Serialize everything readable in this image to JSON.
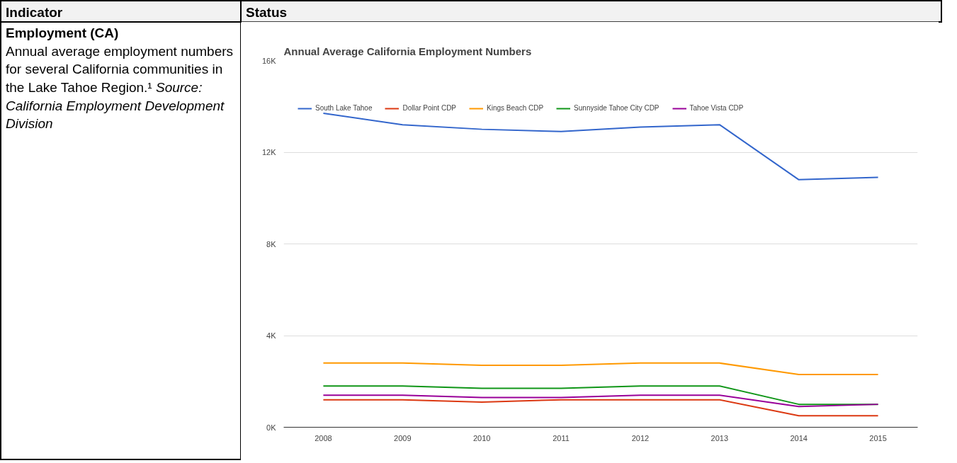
{
  "chart_data": {
    "type": "line",
    "title": "Annual Average California Employment Numbers",
    "annotations": [
      "Indicator",
      "Status",
      "Employment (CA)",
      "Annual average employment numbers for several California communities in the Lake Tahoe Region.¹",
      "Source: California Employment Development Division"
    ],
    "categories": [
      "2008",
      "2009",
      "2010",
      "2011",
      "2012",
      "2013",
      "2014",
      "2015"
    ],
    "series": [
      {
        "name": "South Lake Tahoe",
        "color": "#3366cc",
        "values": [
          13700,
          13200,
          13000,
          12900,
          13100,
          13200,
          10800,
          10900
        ]
      },
      {
        "name": "Dollar Point CDP",
        "color": "#dc3912",
        "values": [
          1200,
          1200,
          1100,
          1200,
          1200,
          1200,
          500,
          500
        ]
      },
      {
        "name": "Kings Beach CDP",
        "color": "#ff9900",
        "values": [
          2800,
          2800,
          2700,
          2700,
          2800,
          2800,
          2300,
          2300
        ]
      },
      {
        "name": "Sunnyside Tahoe City CDP",
        "color": "#109618",
        "values": [
          1800,
          1800,
          1700,
          1700,
          1800,
          1800,
          1000,
          1000
        ]
      },
      {
        "name": "Tahoe Vista CDP",
        "color": "#990099",
        "values": [
          1400,
          1400,
          1300,
          1300,
          1400,
          1400,
          900,
          1000
        ]
      }
    ],
    "ylim": [
      0,
      16000
    ],
    "yticks": [
      {
        "value": 0,
        "label": "0K"
      },
      {
        "value": 4000,
        "label": "4K"
      },
      {
        "value": 8000,
        "label": "8K"
      },
      {
        "value": 12000,
        "label": "12K"
      },
      {
        "value": 16000,
        "label": "16K"
      }
    ],
    "grid": "y",
    "legend": "top",
    "line_style": "solid",
    "marker": "none"
  }
}
